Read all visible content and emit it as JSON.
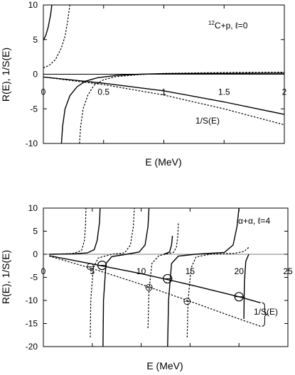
{
  "chart_data": [
    {
      "type": "line",
      "xlabel": "E (MeV)",
      "ylabel": "R(E), 1/S(E)",
      "xlim": [
        0,
        2
      ],
      "ylim": [
        -10,
        10
      ],
      "xticks": [
        0,
        0.5,
        1,
        1.5,
        2
      ],
      "yticks": [
        -10,
        -5,
        0,
        5,
        10
      ],
      "xtick_labels": [
        "0",
        "0.5",
        "1",
        "1.5",
        "2"
      ],
      "ytick_labels": [
        "-10",
        "-5",
        "0",
        "5",
        "10"
      ],
      "annotation_label": {
        "pre": "12",
        "main": "C+p, ℓ=0"
      },
      "curve_label": "1/S(E)",
      "series": [
        {
          "style": "solid",
          "points": [
            [
              0,
              4.9
            ],
            [
              0.02,
              5.6
            ],
            [
              0.04,
              6.8
            ],
            [
              0.06,
              8.6
            ],
            [
              0.07,
              10
            ]
          ]
        },
        {
          "style": "dotted",
          "points": [
            [
              0,
              0.9
            ],
            [
              0.05,
              1.3
            ],
            [
              0.1,
              2.1
            ],
            [
              0.15,
              3.8
            ],
            [
              0.18,
              5.5
            ],
            [
              0.2,
              7.5
            ],
            [
              0.22,
              10
            ]
          ]
        },
        {
          "style": "solid",
          "points": [
            [
              0.15,
              -10
            ],
            [
              0.16,
              -7.5
            ],
            [
              0.18,
              -5
            ],
            [
              0.22,
              -3.1
            ],
            [
              0.28,
              -1.8
            ],
            [
              0.35,
              -1.0
            ],
            [
              0.45,
              -0.5
            ],
            [
              0.6,
              -0.18
            ],
            [
              0.8,
              0
            ],
            [
              1.0,
              0.08
            ],
            [
              1.5,
              0.12
            ],
            [
              2.0,
              0.15
            ]
          ]
        },
        {
          "style": "dotted",
          "points": [
            [
              0.3,
              -10
            ],
            [
              0.31,
              -7.5
            ],
            [
              0.33,
              -5
            ],
            [
              0.37,
              -3.0
            ],
            [
              0.42,
              -1.6
            ],
            [
              0.5,
              -0.8
            ],
            [
              0.6,
              -0.35
            ],
            [
              0.8,
              -0.05
            ],
            [
              1.0,
              0.12
            ],
            [
              1.5,
              0.25
            ],
            [
              2.0,
              0.3
            ]
          ]
        },
        {
          "style": "solid",
          "points": [
            [
              0,
              -0.4
            ],
            [
              0.5,
              -1.3
            ],
            [
              1.0,
              -2.4
            ],
            [
              1.5,
              -4.0
            ],
            [
              2.0,
              -5.8
            ]
          ]
        },
        {
          "style": "dotted",
          "points": [
            [
              0,
              -0.4
            ],
            [
              0.5,
              -1.5
            ],
            [
              1.0,
              -3.0
            ],
            [
              1.5,
              -5.0
            ],
            [
              2.0,
              -7.3
            ]
          ]
        }
      ]
    },
    {
      "type": "line",
      "xlabel": "E (MeV)",
      "ylabel": "R(E), 1/S(E)",
      "xlim": [
        0,
        25
      ],
      "ylim": [
        -20,
        10
      ],
      "xticks": [
        0,
        5,
        10,
        15,
        20,
        25
      ],
      "yticks": [
        -20,
        -15,
        -10,
        -5,
        0,
        5,
        10
      ],
      "xtick_labels": [
        "0",
        "5",
        "10",
        "15",
        "20",
        "25"
      ],
      "ytick_labels": [
        "-20",
        "-15",
        "-10",
        "-5",
        "0",
        "5",
        "10"
      ],
      "annotation_label": {
        "pre": "",
        "main": "α+α, ℓ=4"
      },
      "curve_label": "1/S(E)",
      "series": [
        {
          "style": "solid",
          "points": [
            [
              0.6,
              0
            ],
            [
              3,
              0.1
            ],
            [
              4.5,
              0.3
            ],
            [
              5.2,
              1.0
            ],
            [
              5.5,
              3.0
            ],
            [
              5.75,
              7
            ],
            [
              5.8,
              10
            ]
          ]
        },
        {
          "style": "dotted",
          "points": [
            [
              1.0,
              0
            ],
            [
              3,
              0.15
            ],
            [
              3.9,
              0.8
            ],
            [
              4.2,
              3.0
            ],
            [
              4.3,
              6
            ],
            [
              4.35,
              10
            ]
          ]
        },
        {
          "style": "solid",
          "points": [
            [
              6.1,
              -20
            ],
            [
              6.15,
              -10
            ],
            [
              6.4,
              -2
            ],
            [
              7,
              -0.5
            ],
            [
              8.5,
              0
            ],
            [
              9.8,
              0.5
            ],
            [
              10.4,
              2.0
            ],
            [
              10.7,
              6
            ],
            [
              10.8,
              10
            ]
          ]
        },
        {
          "style": "dotted",
          "points": [
            [
              4.8,
              -18
            ],
            [
              4.85,
              -10
            ],
            [
              5.1,
              -3
            ],
            [
              5.6,
              -0.8
            ],
            [
              7,
              0
            ],
            [
              8.3,
              0.3
            ],
            [
              8.9,
              2.0
            ],
            [
              9.2,
              6
            ],
            [
              9.3,
              10
            ]
          ]
        },
        {
          "style": "solid",
          "points": [
            [
              12.7,
              -20
            ],
            [
              12.8,
              -10
            ],
            [
              13.1,
              -2
            ],
            [
              13.8,
              -0.4
            ],
            [
              15.5,
              0
            ],
            [
              18.5,
              0.4
            ],
            [
              19.4,
              2.0
            ],
            [
              19.8,
              6
            ],
            [
              20.0,
              10
            ]
          ]
        },
        {
          "style": "dotted",
          "points": [
            [
              10.7,
              -16
            ],
            [
              10.8,
              -8
            ],
            [
              11.1,
              -2
            ],
            [
              11.8,
              -0.3
            ],
            [
              13.3,
              0.4
            ],
            [
              13.6,
              1.5
            ],
            [
              13.75,
              4
            ],
            [
              13.8,
              7
            ]
          ]
        },
        {
          "style": "solid",
          "points": [
            [
              12.3,
              0
            ],
            [
              12.9,
              0.5
            ],
            [
              13.1,
              2.0
            ],
            [
              13.2,
              4.0
            ]
          ]
        },
        {
          "style": "dotted",
          "points": [
            [
              14.7,
              -18
            ],
            [
              14.8,
              -10
            ],
            [
              15.1,
              -3
            ],
            [
              15.6,
              -0.6
            ],
            [
              17,
              0
            ],
            [
              19.5,
              0.2
            ],
            [
              20.5,
              0.6
            ],
            [
              21.0,
              1.5
            ]
          ]
        },
        {
          "style": "solid",
          "points": [
            [
              20.5,
              -14
            ],
            [
              20.55,
              -6
            ],
            [
              20.7,
              -1.5
            ],
            [
              21.0,
              0
            ]
          ]
        },
        {
          "style": "solid",
          "points": [
            [
              0.6,
              -0.3
            ],
            [
              5,
              -2.1
            ],
            [
              10,
              -4.2
            ],
            [
              15,
              -6.6
            ],
            [
              20,
              -9.2
            ],
            [
              22.2,
              -10.5
            ]
          ]
        },
        {
          "style": "dotted",
          "points": [
            [
              0.6,
              -0.4
            ],
            [
              5,
              -3.1
            ],
            [
              10,
              -6.5
            ],
            [
              15,
              -10.2
            ],
            [
              20,
              -14.0
            ],
            [
              22.2,
              -15.6
            ]
          ]
        }
      ],
      "markers": {
        "large": [
          [
            6.0,
            -2.4
          ],
          [
            12.7,
            -5.3
          ],
          [
            20.0,
            -9.2
          ]
        ],
        "small": [
          [
            4.8,
            -2.7
          ],
          [
            10.8,
            -7.2
          ],
          [
            14.7,
            -10.2
          ]
        ]
      },
      "brace": {
        "x": 22.2,
        "y_top": -10.5,
        "y_bottom": -15.6
      }
    }
  ]
}
